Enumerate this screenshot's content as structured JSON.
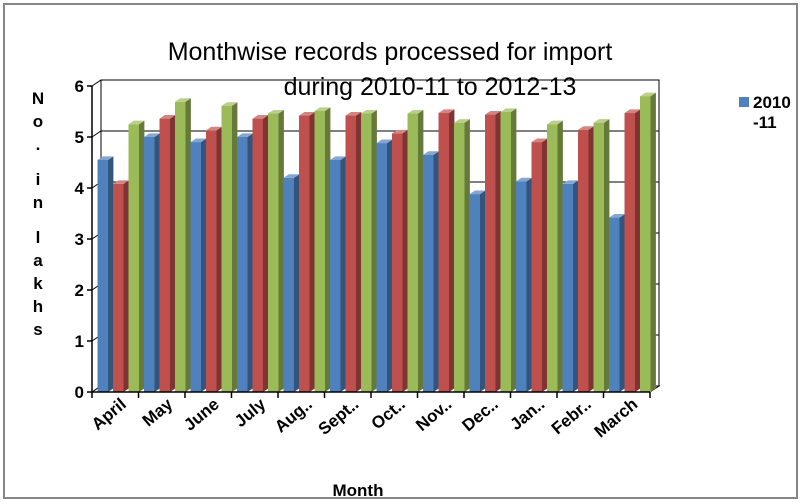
{
  "chart_data": {
    "type": "bar",
    "title_line1": "Monthwise records processed for import",
    "title_line2": "during 2010-11 to 2012-13",
    "xlabel": "Month",
    "ylabel": "No. in lakhs",
    "categories": [
      "April",
      "May",
      "June",
      "July",
      "Aug..",
      "Sept..",
      "Oct..",
      "Nov..",
      "Dec..",
      "Jan..",
      "Febr..",
      "March"
    ],
    "series": [
      {
        "name": "2010-11",
        "legend_line1": "2010",
        "legend_line2": "-11",
        "color": "#4F81BD",
        "values": [
          4.55,
          5.0,
          4.9,
          5.0,
          4.2,
          4.55,
          4.88,
          4.65,
          3.88,
          4.13,
          4.08,
          3.42
        ]
      },
      {
        "color": "#C0504D",
        "values": [
          4.08,
          5.36,
          5.13,
          5.36,
          5.42,
          5.42,
          5.07,
          5.47,
          5.44,
          4.9,
          5.14,
          5.47
        ]
      },
      {
        "color": "#9BBB59",
        "values": [
          5.25,
          5.69,
          5.61,
          5.46,
          5.51,
          5.46,
          5.46,
          5.28,
          5.49,
          5.25,
          5.28,
          5.8
        ]
      }
    ],
    "yticks": [
      0,
      1,
      2,
      3,
      4,
      5,
      6
    ],
    "ylim": [
      0,
      6
    ],
    "grid": true,
    "legend_position": "right"
  }
}
